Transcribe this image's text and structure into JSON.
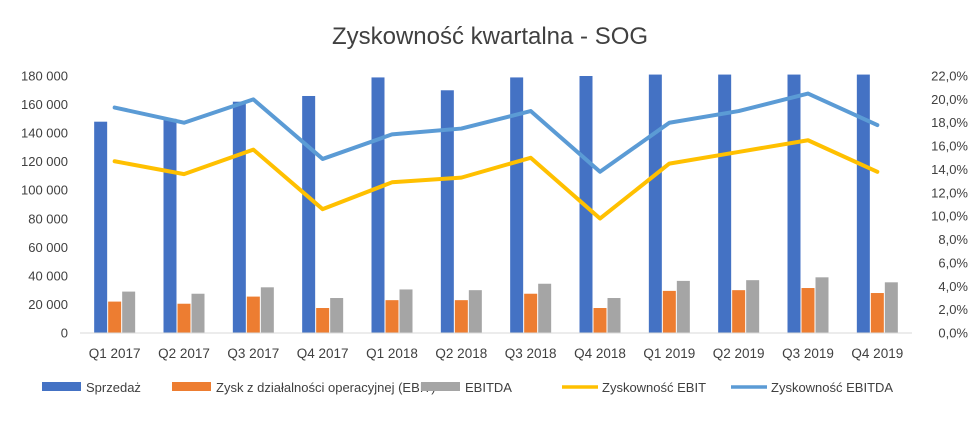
{
  "chart_data": {
    "type": "bar",
    "title": "Zyskowność kwartalna - SOG",
    "categories": [
      "Q1 2017",
      "Q2 2017",
      "Q3 2017",
      "Q4 2017",
      "Q1 2018",
      "Q2 2018",
      "Q3 2018",
      "Q4 2018",
      "Q1 2019",
      "Q2 2019",
      "Q3 2019",
      "Q4 2019"
    ],
    "ylim": [
      0,
      180000
    ],
    "yticks": [
      0,
      20000,
      40000,
      60000,
      80000,
      100000,
      120000,
      140000,
      160000,
      180000
    ],
    "ytick_labels": [
      "0",
      "20 000",
      "40 000",
      "60 000",
      "80 000",
      "100 000",
      "120 000",
      "140 000",
      "160 000",
      "180 000"
    ],
    "y2lim": [
      0,
      0.22
    ],
    "y2ticks": [
      0,
      0.02,
      0.04,
      0.06,
      0.08,
      0.1,
      0.12,
      0.14,
      0.16,
      0.18,
      0.2,
      0.22
    ],
    "y2tick_labels": [
      "0,0%",
      "2,0%",
      "4,0%",
      "6,0%",
      "8,0%",
      "10,0%",
      "12,0%",
      "14,0%",
      "16,0%",
      "18,0%",
      "20,0%",
      "22,0%"
    ],
    "grid": false,
    "legend_position": "bottom",
    "series": [
      {
        "name": "Sprzedaż",
        "kind": "bar",
        "axis": "left",
        "color": "#4472C4",
        "values": [
          148000,
          150000,
          162000,
          166000,
          179000,
          170000,
          179000,
          180000,
          181000,
          181000,
          181000,
          181000
        ]
      },
      {
        "name": "Zysk z działalności operacyjnej (EBIT)",
        "kind": "bar",
        "axis": "left",
        "color": "#ED7D31",
        "values": [
          22000,
          20500,
          25500,
          17500,
          23000,
          23000,
          27500,
          17500,
          29500,
          30000,
          31500,
          28000
        ]
      },
      {
        "name": "EBITDA",
        "kind": "bar",
        "axis": "left",
        "color": "#A5A5A5",
        "values": [
          29000,
          27500,
          32000,
          24500,
          30500,
          30000,
          34500,
          24500,
          36500,
          37000,
          39000,
          35500
        ]
      },
      {
        "name": "Zyskowność EBIT",
        "kind": "line",
        "axis": "right",
        "color": "#FFC000",
        "values": [
          0.147,
          0.136,
          0.157,
          0.106,
          0.129,
          0.133,
          0.15,
          0.098,
          0.145,
          0.155,
          0.165,
          0.138
        ]
      },
      {
        "name": "Zyskowność EBITDA",
        "kind": "line",
        "axis": "right",
        "color": "#5B9BD5",
        "values": [
          0.193,
          0.18,
          0.2,
          0.149,
          0.17,
          0.175,
          0.19,
          0.138,
          0.18,
          0.19,
          0.205,
          0.178
        ]
      }
    ]
  }
}
